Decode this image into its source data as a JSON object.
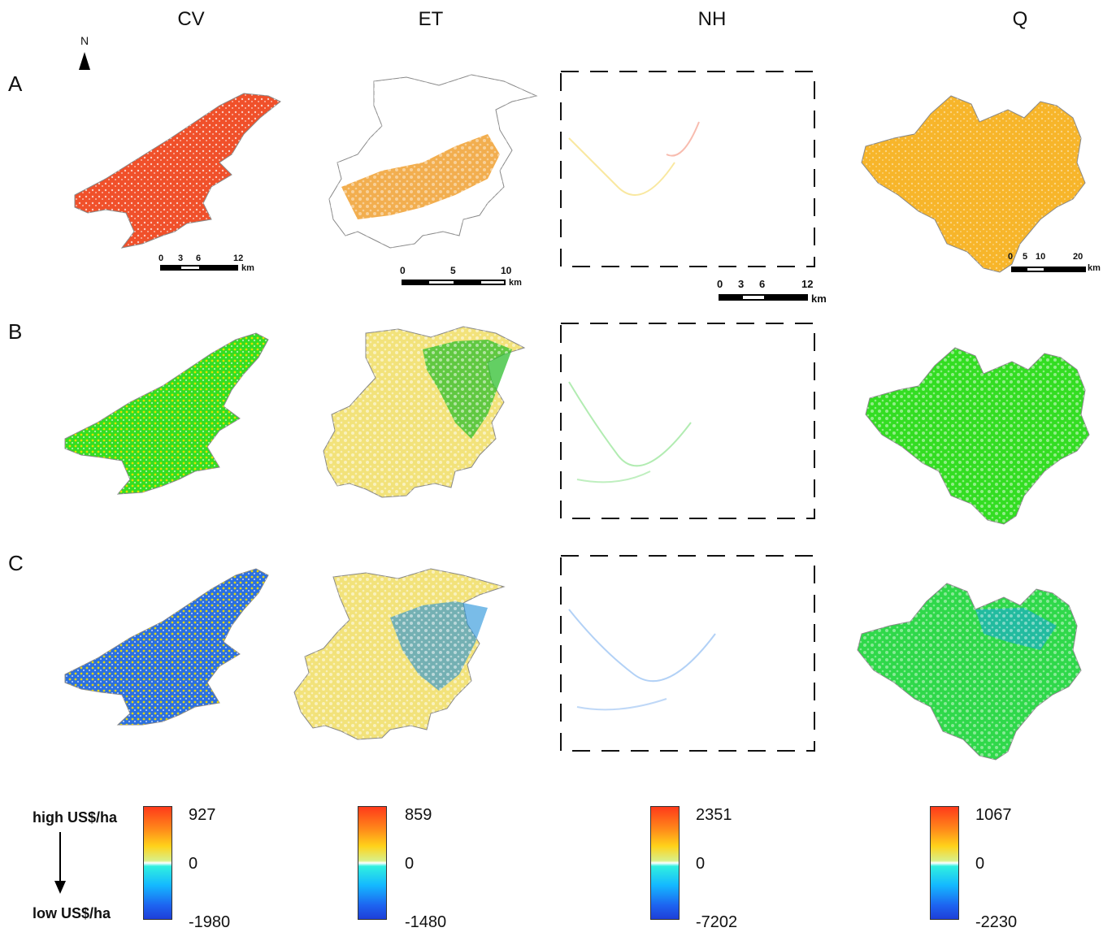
{
  "columns": [
    "CV",
    "ET",
    "NH",
    "Q"
  ],
  "rows": [
    "A",
    "B",
    "C"
  ],
  "north": "N",
  "scalebars": {
    "cv": {
      "ticks": [
        "0",
        "3",
        "6",
        "12"
      ],
      "unit": "km"
    },
    "et": {
      "ticks": [
        "0",
        "5",
        "10"
      ],
      "unit": "km"
    },
    "nh": {
      "ticks": [
        "0",
        "3",
        "6",
        "12"
      ],
      "unit": "km"
    },
    "q": {
      "ticks": [
        "0",
        "5",
        "10",
        "20"
      ],
      "unit": "km"
    }
  },
  "legend": {
    "high_label": "high US$/ha",
    "low_label": "low US$/ha",
    "scales": [
      {
        "max": "927",
        "mid": "0",
        "min": "-1980"
      },
      {
        "max": "859",
        "mid": "0",
        "min": "-1480"
      },
      {
        "max": "2351",
        "mid": "0",
        "min": "-7202"
      },
      {
        "max": "1067",
        "mid": "0",
        "min": "-2230"
      }
    ]
  },
  "colors": {
    "row_a_cv": "#f0502a",
    "row_a_et": "#f0a030",
    "row_a_q": "#f7b52a",
    "row_b": "#33dd22",
    "row_b_et": "#f2e27a",
    "row_c_cv": "#2a6fe0",
    "row_c_et": "#f2e27a",
    "row_c_q": "#2fd84a"
  }
}
